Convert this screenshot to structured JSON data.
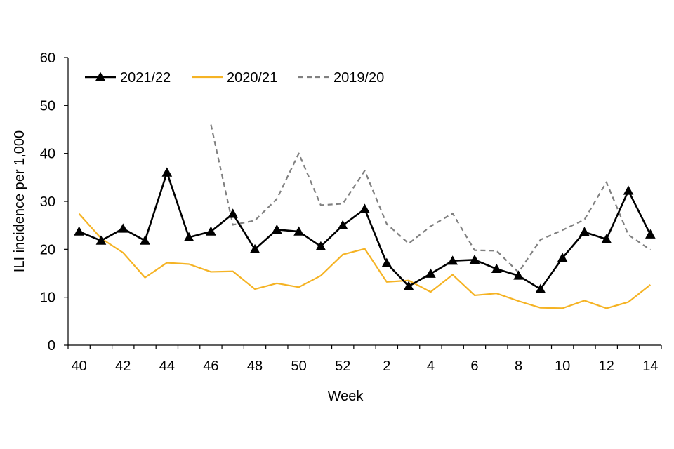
{
  "chart_data": {
    "type": "line",
    "title": "",
    "xlabel": "Week",
    "ylabel": "ILI incidence per 1,000",
    "ylim": [
      0,
      60
    ],
    "yticks": [
      0,
      10,
      20,
      30,
      40,
      50,
      60
    ],
    "categories": [
      "40",
      "41",
      "42",
      "43",
      "44",
      "45",
      "46",
      "47",
      "48",
      "49",
      "50",
      "51",
      "52",
      "1",
      "2",
      "3",
      "4",
      "5",
      "6",
      "7",
      "8",
      "9",
      "10",
      "11",
      "12",
      "13",
      "14"
    ],
    "xtick_labels": [
      "40",
      "",
      "42",
      "",
      "44",
      "",
      "46",
      "",
      "48",
      "",
      "50",
      "",
      "52",
      "",
      "2",
      "",
      "4",
      "",
      "6",
      "",
      "8",
      "",
      "10",
      "",
      "12",
      "",
      "14"
    ],
    "legend_position": "top-left",
    "series": [
      {
        "name": "2021/22",
        "color": "#000000",
        "style": "solid",
        "marker": "triangle",
        "values": [
          23.7,
          21.8,
          24.3,
          21.8,
          36.0,
          22.5,
          23.7,
          27.4,
          20.0,
          24.1,
          23.7,
          20.6,
          25.0,
          28.4,
          17.1,
          12.3,
          14.9,
          17.6,
          17.8,
          15.9,
          14.5,
          11.7,
          18.2,
          23.6,
          22.1,
          32.2,
          23.1
        ]
      },
      {
        "name": "2020/21",
        "color": "#F5B324",
        "style": "solid",
        "marker": "none",
        "values": [
          27.4,
          22.3,
          19.3,
          14.1,
          17.2,
          16.9,
          15.3,
          15.4,
          11.7,
          12.9,
          12.1,
          14.5,
          18.9,
          20.1,
          13.2,
          13.5,
          11.1,
          14.7,
          10.4,
          10.8,
          9.2,
          7.8,
          7.7,
          9.3,
          7.7,
          9.0,
          12.6
        ]
      },
      {
        "name": "2019/20",
        "color": "#808080",
        "style": "dashed",
        "marker": "none",
        "values": [
          null,
          null,
          null,
          null,
          null,
          null,
          46.0,
          25.1,
          26.0,
          30.5,
          40.0,
          29.2,
          29.5,
          36.4,
          25.3,
          21.2,
          24.8,
          27.5,
          19.8,
          19.7,
          15.2,
          22.0,
          24.0,
          26.2,
          34.0,
          23.0,
          19.9
        ]
      }
    ]
  }
}
